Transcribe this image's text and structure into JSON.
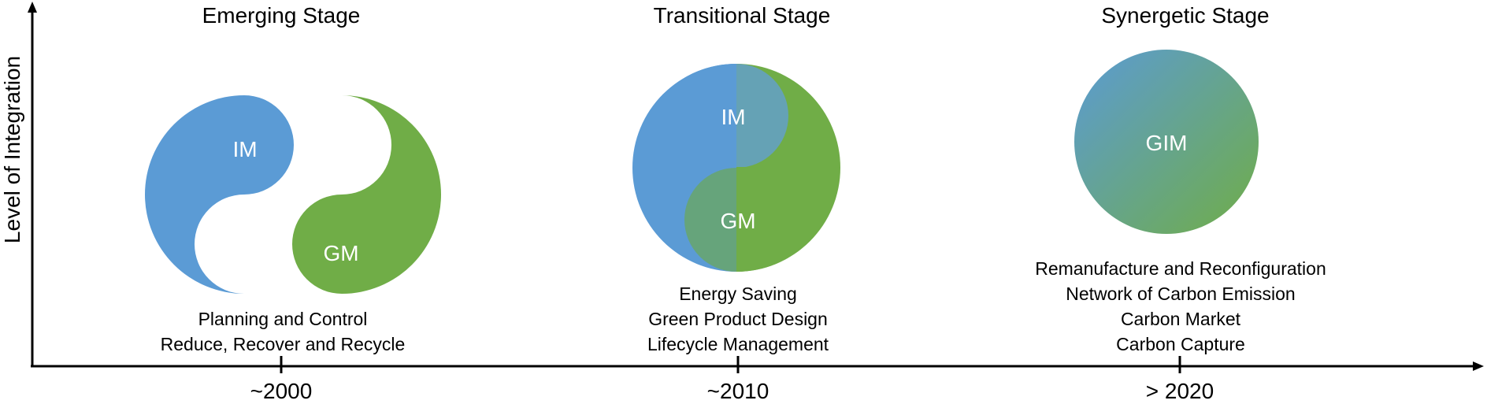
{
  "y_axis_label": "Level of Integration",
  "stages": [
    {
      "title": "Emerging Stage",
      "tick": "~2000",
      "labels": [
        "IM",
        "GM"
      ],
      "descriptions": [
        "Planning and Control",
        "Reduce, Recover and Recycle"
      ]
    },
    {
      "title": "Transitional Stage",
      "tick": "~2010",
      "labels": [
        "IM",
        "GM"
      ],
      "descriptions": [
        "Energy Saving",
        "Green Product Design",
        "Lifecycle Management"
      ]
    },
    {
      "title": "Synergetic Stage",
      "tick": "> 2020",
      "labels": [
        "GIM"
      ],
      "descriptions": [
        "Remanufacture and Reconfiguration",
        "Network of Carbon Emission",
        "Carbon Market",
        "Carbon Capture"
      ]
    }
  ],
  "colors": {
    "im_blue": "#5b9bd5",
    "gm_green": "#70ad47",
    "axis": "#000000"
  }
}
